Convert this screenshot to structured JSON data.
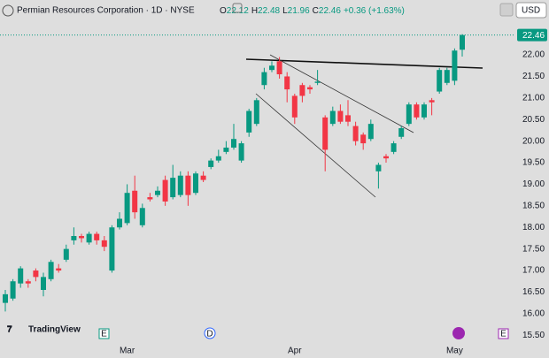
{
  "chart_data": {
    "type": "candlestick",
    "title": "Permian Resources Corporation · 1D · NYSE",
    "ohlc_legend": [
      {
        "label": "O",
        "value": "22.12"
      },
      {
        "label": "H",
        "value": "22.48"
      },
      {
        "label": "L",
        "value": "21.96"
      },
      {
        "label": "C",
        "value": "22.46"
      }
    ],
    "change": "+0.36 (+1.63%)",
    "currency": "USD",
    "brand": "TradingView",
    "events": [
      "E",
      "D",
      "E"
    ],
    "up_color": "#089981",
    "down_color": "#f23645",
    "grid": false,
    "last_price": 22.46,
    "categories": [
      null,
      null,
      null,
      null,
      null,
      null,
      null,
      null,
      null,
      null,
      null,
      null,
      null,
      null,
      null,
      null,
      "Mar",
      null,
      null,
      null,
      null,
      null,
      null,
      null,
      null,
      null,
      null,
      null,
      null,
      null,
      null,
      null,
      null,
      null,
      null,
      null,
      null,
      null,
      "Apr",
      null,
      null,
      null,
      null,
      null,
      null,
      null,
      null,
      null,
      null,
      null,
      null,
      null,
      null,
      null,
      null,
      null,
      null,
      null,
      null,
      "May",
      null
    ],
    "open": [
      16.25,
      16.35,
      16.7,
      16.75,
      17.0,
      16.55,
      16.8,
      17.05,
      17.25,
      17.7,
      17.8,
      17.65,
      17.85,
      17.7,
      17.0,
      18.0,
      18.1,
      18.85,
      18.05,
      18.7,
      18.75,
      19.1,
      18.7,
      18.75,
      19.2,
      18.8,
      19.2,
      19.4,
      19.55,
      19.75,
      19.85,
      19.55,
      20.2,
      20.4,
      21.3,
      21.65,
      21.85,
      21.5,
      21.05,
      21.3,
      21.25,
      21.35,
      20.55,
      20.4,
      20.7,
      20.6,
      20.35,
      20.15,
      20.05,
      19.3,
      19.65,
      19.75,
      20.1,
      20.4,
      20.85,
      20.55,
      20.95,
      21.15,
      21.35,
      21.4,
      22.12
    ],
    "high": [
      16.55,
      16.8,
      17.1,
      16.8,
      17.05,
      16.95,
      17.25,
      17.15,
      17.6,
      18.0,
      17.85,
      17.9,
      17.9,
      17.8,
      18.05,
      18.35,
      19.0,
      19.2,
      18.55,
      18.8,
      18.95,
      19.2,
      19.45,
      19.3,
      19.3,
      19.3,
      19.3,
      19.6,
      19.8,
      20.0,
      20.4,
      20.0,
      20.75,
      21.0,
      21.7,
      21.85,
      21.95,
      21.6,
      21.1,
      21.35,
      21.3,
      21.65,
      20.6,
      20.8,
      20.85,
      20.95,
      20.45,
      20.2,
      20.5,
      19.5,
      19.7,
      20.0,
      20.35,
      20.9,
      20.9,
      20.9,
      21.0,
      21.7,
      21.7,
      22.15,
      22.48
    ],
    "low": [
      16.05,
      16.3,
      16.6,
      16.6,
      16.75,
      16.4,
      16.75,
      16.95,
      17.2,
      17.6,
      17.65,
      17.6,
      17.6,
      17.45,
      16.95,
      17.95,
      18.05,
      18.2,
      18.0,
      18.6,
      18.7,
      18.5,
      18.65,
      18.7,
      18.5,
      18.75,
      19.05,
      19.35,
      19.5,
      19.7,
      19.8,
      19.5,
      20.1,
      20.35,
      21.2,
      21.6,
      21.45,
      20.9,
      20.4,
      20.9,
      21.1,
      21.3,
      19.3,
      20.35,
      20.4,
      20.35,
      19.9,
      19.8,
      20.0,
      18.9,
      19.5,
      19.7,
      20.05,
      20.35,
      20.5,
      20.5,
      20.6,
      21.1,
      21.3,
      21.3,
      21.96
    ],
    "close": [
      16.45,
      16.75,
      17.05,
      16.7,
      16.85,
      16.85,
      17.2,
      17.0,
      17.5,
      17.8,
      17.75,
      17.85,
      17.7,
      17.55,
      18.0,
      18.2,
      18.8,
      18.35,
      18.45,
      18.65,
      18.85,
      18.6,
      19.15,
      19.2,
      18.75,
      19.25,
      19.1,
      19.55,
      19.65,
      19.85,
      20.05,
      19.95,
      20.7,
      20.95,
      21.6,
      21.75,
      21.55,
      21.2,
      20.55,
      21.05,
      21.2,
      21.38,
      19.8,
      20.7,
      20.45,
      20.45,
      20.0,
      19.95,
      20.4,
      19.45,
      19.6,
      19.95,
      20.3,
      20.85,
      20.55,
      20.85,
      20.9,
      21.65,
      21.65,
      22.1,
      22.46
    ],
    "ylim": [
      15.32,
      22.76
    ],
    "yticks": [
      {
        "value": 15.5,
        "label": "15.50"
      },
      {
        "value": 16,
        "label": "16.00"
      },
      {
        "value": 16.5,
        "label": "16.50"
      },
      {
        "value": 17,
        "label": "17.00"
      },
      {
        "value": 17.5,
        "label": "17.50"
      },
      {
        "value": 18,
        "label": "18.00"
      },
      {
        "value": 18.5,
        "label": "18.50"
      },
      {
        "value": 19,
        "label": "19.00"
      },
      {
        "value": 19.5,
        "label": "19.50"
      },
      {
        "value": 20,
        "label": "20.00"
      },
      {
        "value": 20.5,
        "label": "20.50"
      },
      {
        "value": 21,
        "label": "21.00"
      },
      {
        "value": 21.5,
        "label": "21.50"
      },
      {
        "value": 22,
        "label": "22.00"
      }
    ]
  }
}
